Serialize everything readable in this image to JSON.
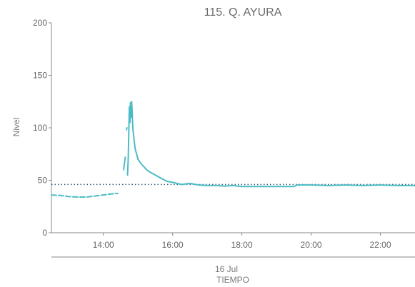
{
  "chart_data": {
    "type": "line",
    "title": "115. Q. AYURA",
    "ylabel": "Nivel",
    "xlabel": "TIEMPO",
    "date_label": "16 Jul",
    "xlim": [
      "12:30",
      "23:00"
    ],
    "ylim": [
      0,
      200
    ],
    "y_ticks": [
      "0",
      "50",
      "100",
      "150",
      "200"
    ],
    "x_ticks": [
      "14:00",
      "16:00",
      "18:00",
      "20:00",
      "22:00"
    ],
    "grid": false,
    "legend": "none",
    "reference_line": {
      "y": 46,
      "style": "dotted",
      "color": "#2e5d7a"
    },
    "series": [
      {
        "color": "#4bbcc6",
        "points": [
          [
            "12:30",
            36
          ],
          [
            "12:45",
            35.5
          ],
          [
            "13:00",
            34.5
          ],
          [
            "13:15",
            34
          ],
          [
            "13:30",
            34
          ],
          [
            "13:45",
            35
          ],
          [
            "14:00",
            36
          ],
          [
            "14:15",
            37
          ],
          [
            "14:25",
            37.5
          ],
          null,
          [
            "14:35",
            60
          ],
          [
            "14:37",
            68
          ],
          [
            "14:38",
            72
          ],
          null,
          [
            "14:40",
            98
          ],
          [
            "14:41",
            100
          ],
          null,
          [
            "14:42",
            55
          ],
          [
            "14:43",
            70
          ],
          [
            "14:44",
            95
          ],
          [
            "14:45",
            120
          ],
          [
            "14:46",
            105
          ],
          [
            "14:47",
            124
          ],
          [
            "14:48",
            110
          ],
          [
            "14:49",
            125
          ],
          [
            "14:50",
            115
          ],
          [
            "14:51",
            100
          ],
          [
            "14:53",
            90
          ],
          [
            "14:55",
            80
          ],
          [
            "14:58",
            74
          ],
          [
            "15:00",
            70
          ],
          [
            "15:05",
            66
          ],
          [
            "15:10",
            63
          ],
          [
            "15:15",
            60
          ],
          [
            "15:20",
            58
          ],
          [
            "15:30",
            55
          ],
          [
            "15:40",
            52
          ],
          [
            "15:50",
            49
          ],
          [
            "16:00",
            48
          ],
          [
            "16:15",
            46
          ],
          [
            "16:30",
            47
          ],
          [
            "16:45",
            45.5
          ],
          [
            "17:00",
            45
          ],
          [
            "17:15",
            45
          ],
          [
            "17:30",
            44.5
          ],
          [
            "17:45",
            45
          ],
          [
            "18:00",
            44
          ],
          [
            "18:30",
            44
          ],
          [
            "19:00",
            44
          ],
          [
            "19:30",
            44
          ],
          [
            "19:35",
            45.5
          ],
          [
            "20:00",
            45.5
          ],
          [
            "20:30",
            45
          ],
          [
            "21:00",
            45.5
          ],
          [
            "21:30",
            45
          ],
          [
            "22:00",
            45.5
          ],
          [
            "22:30",
            45
          ],
          [
            "23:00",
            45
          ]
        ]
      }
    ]
  }
}
